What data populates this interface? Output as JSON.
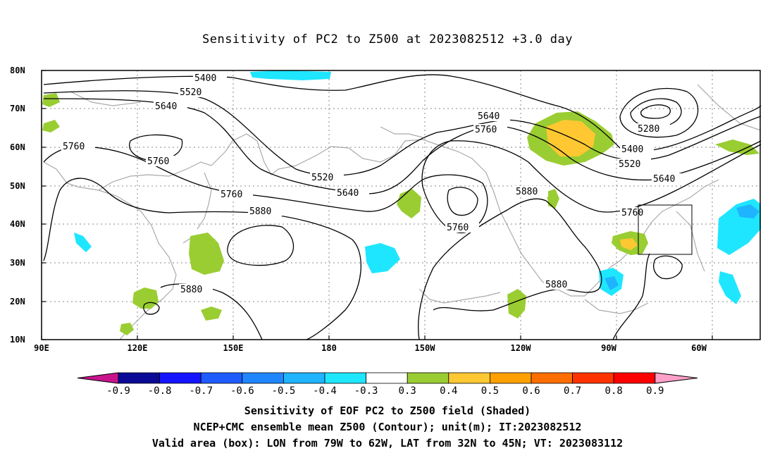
{
  "title": "Sensitivity of PC2 to Z500 at 2023082512 +3.0 day",
  "map": {
    "lat_labels": [
      "80N",
      "70N",
      "60N",
      "50N",
      "40N",
      "30N",
      "20N",
      "10N"
    ],
    "lon_labels": [
      "90E",
      "120E",
      "150E",
      "180",
      "150W",
      "120W",
      "90W",
      "60W"
    ],
    "contour_levels": [
      "5280",
      "5400",
      "5520",
      "5640",
      "5760",
      "5880"
    ],
    "valid_box": {
      "lon_from": "79W",
      "lon_to": "62W",
      "lat_from": "32N",
      "lat_to": "45N"
    }
  },
  "colorbar": {
    "labels": [
      "-0.9",
      "-0.8",
      "-0.7",
      "-0.6",
      "-0.5",
      "-0.4",
      "-0.3",
      "0.3",
      "0.4",
      "0.5",
      "0.6",
      "0.7",
      "0.8",
      "0.9"
    ],
    "colors": [
      "#0a0a96",
      "#1414ff",
      "#1f5cff",
      "#1f86ff",
      "#1fb4ff",
      "#1fe6ff",
      "#ffffff",
      "#9acd32",
      "#ffc832",
      "#ffa000",
      "#ff6e00",
      "#ff3200",
      "#ff0000"
    ],
    "left_tip_color": "#c8148c",
    "right_tip_color": "#ffa0c8"
  },
  "captions": {
    "line1": "Sensitivity of EOF PC2 to Z500 field (Shaded)",
    "line2": "NCEP+CMC ensemble mean Z500 (Contour); unit(m); IT:2023082512",
    "line3": "Valid area (box): LON from 79W to 62W, LAT from 32N to 45N; VT: 2023083112"
  }
}
